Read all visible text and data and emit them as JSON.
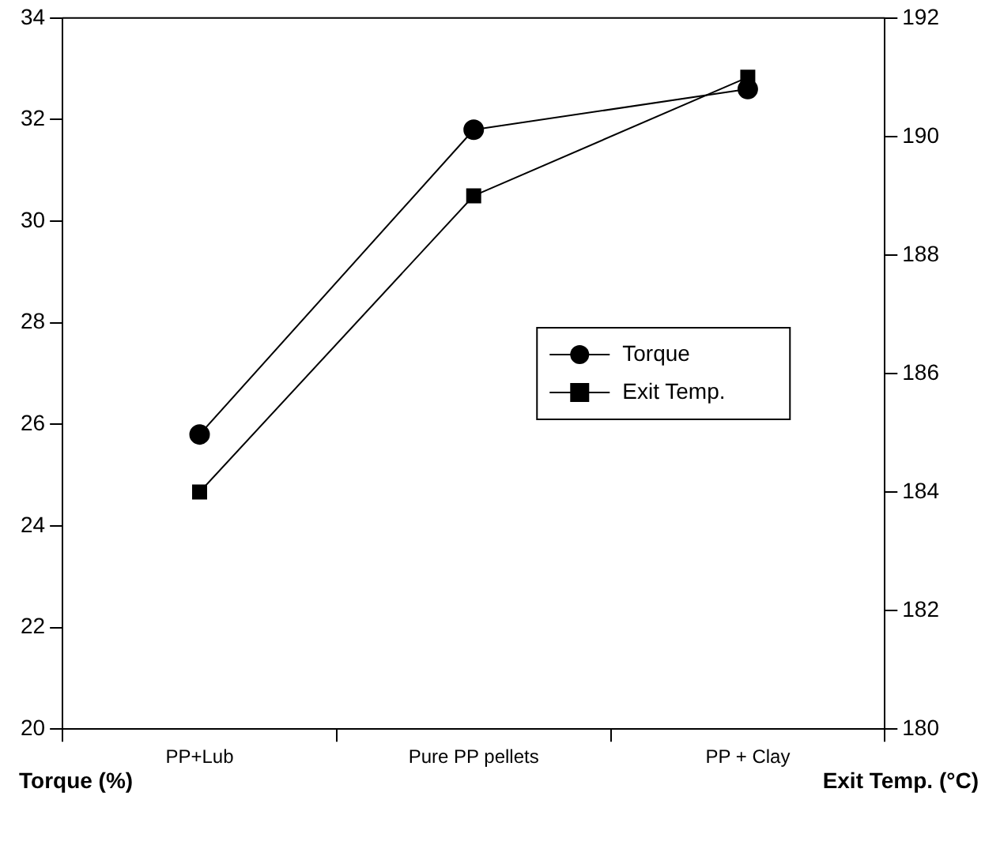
{
  "chart_data": {
    "type": "line",
    "categories": [
      "PP+Lub",
      "Pure PP pellets",
      "PP + Clay"
    ],
    "series": [
      {
        "name": "Torque",
        "color": "#000000",
        "values": [
          25.8,
          31.8,
          32.6
        ],
        "marker": "circle"
      },
      {
        "name": "Exit Temp.",
        "color": "#000000",
        "values": [
          184,
          189,
          191
        ],
        "marker": "square",
        "axis": "y2"
      }
    ],
    "xlabel": null,
    "ylabel": "Torque (%)",
    "y2label": "Exit Temp. (°C)",
    "ylim": [
      20,
      34
    ],
    "yticks": [
      20,
      22,
      24,
      26,
      28,
      30,
      32,
      34
    ],
    "y2lim": [
      180,
      192
    ],
    "y2ticks": [
      180,
      182,
      184,
      186,
      188,
      190,
      192
    ],
    "grid": false,
    "legend": "right",
    "line_style": "solid"
  }
}
